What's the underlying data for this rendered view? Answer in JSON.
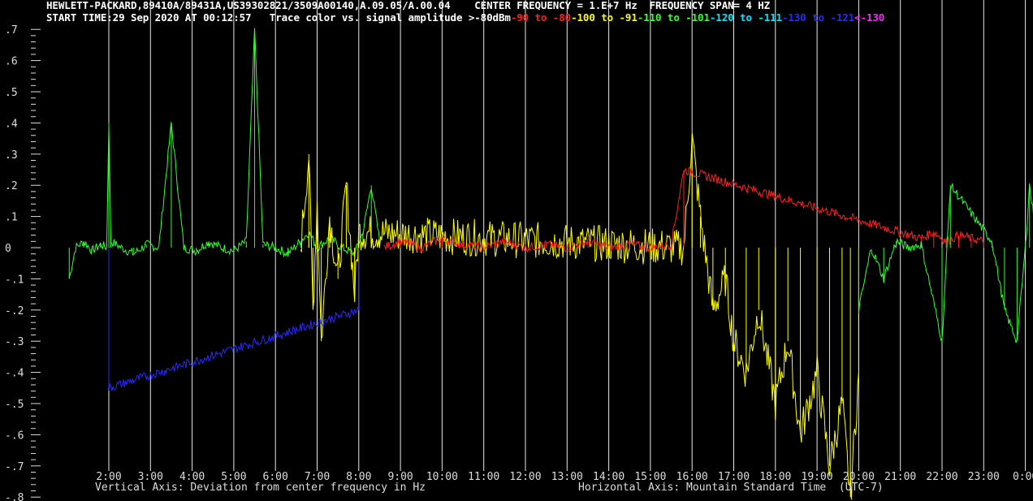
{
  "header": {
    "line1_instrument": "HEWLETT-PACKARD,89410A/89431A,US39302821/3509A00140,A.09.05/A.00.04",
    "line1_center": "CENTER FREQUENCY = 1.E+7 Hz",
    "line1_span": "FREQUENCY SPAN= 4 HZ",
    "line2_start": "START TIME:29 Sep 2020 AT 00:12:57",
    "line2_legend_title": "Trace color vs. signal amplitude",
    "legend": [
      {
        "label": ">-80dBm",
        "color": "#ffffff"
      },
      {
        "label": "-90 to -80",
        "color": "#ff2020"
      },
      {
        "label": "-100 to -91",
        "color": "#ffff00"
      },
      {
        "label": "-110 to -101",
        "color": "#33ff33"
      },
      {
        "label": "-120 to -111",
        "color": "#00e5ff"
      },
      {
        "label": "-130 to -121",
        "color": "#2a2aff"
      },
      {
        "label": "<-130",
        "color": "#ff22ff"
      }
    ]
  },
  "footer": {
    "vertical_axis": "Vertical Axis: Deviation from center frequency in Hz",
    "horizontal_axis": "Horizontal Axis: Mountain Standard Time  (UTC-7)"
  },
  "chart_data": {
    "type": "line",
    "xlabel": "Horizontal Axis: Mountain Standard Time  (UTC-7)",
    "ylabel": "Vertical Axis: Deviation from center frequency in Hz",
    "x_ticks": [
      "2:00",
      "3:00",
      "4:00",
      "5:00",
      "6:00",
      "7:00",
      "8:00",
      "9:00",
      "10:00",
      "11:00",
      "12:00",
      "13:00",
      "14:00",
      "15:00",
      "16:00",
      "17:00",
      "18:00",
      "19:00",
      "20:00",
      "21:00",
      "22:00",
      "23:00",
      "0:00"
    ],
    "y_ticks": [
      ".7",
      ".6",
      ".5",
      ".4",
      ".3",
      ".2",
      ".1",
      "0",
      "-.1",
      "-.2",
      "-.3",
      "-.4",
      "-.5",
      "-.6",
      "-.7",
      "-.8"
    ],
    "ylim": [
      -0.8,
      0.75
    ],
    "xlim_hours": [
      1.05,
      24.3
    ],
    "grid": "vertical lines at each hour",
    "series": [
      {
        "color": "#33ff33",
        "x": [
          1.05,
          1.2,
          1.4,
          1.6,
          1.8,
          1.95,
          2.0,
          2.05,
          2.3,
          2.6,
          2.9,
          3.2,
          3.5,
          3.8,
          4.1,
          4.4,
          4.7,
          5.0,
          5.3,
          5.5,
          5.7,
          6.0,
          6.3,
          6.6,
          6.8,
          7.0,
          7.3,
          7.6,
          7.9,
          8.1,
          8.3,
          8.5
        ],
        "y": [
          -0.1,
          0.0,
          0.02,
          -0.01,
          0.01,
          0.0,
          0.4,
          0.02,
          0.0,
          -0.02,
          0.01,
          0.0,
          0.4,
          0.0,
          -0.01,
          0.02,
          0.0,
          -0.01,
          0.02,
          0.7,
          0.01,
          0.0,
          -0.02,
          0.02,
          0.05,
          0.0,
          0.03,
          0.0,
          -0.02,
          0.05,
          0.2,
          0.02
        ]
      },
      {
        "color": "#ffff00",
        "x": [
          6.6,
          6.8,
          6.9,
          7.0,
          7.1,
          7.3,
          7.5,
          7.7,
          7.9,
          8.0,
          15.8,
          16.0,
          16.2,
          16.5,
          16.8,
          17.0,
          17.3,
          17.6,
          18.0,
          18.3,
          18.6,
          19.0,
          19.3,
          19.6,
          19.8,
          20.0
        ],
        "y": [
          0.0,
          0.3,
          -0.2,
          0.15,
          -0.3,
          0.1,
          -0.1,
          0.2,
          -0.15,
          0.05,
          0.0,
          0.35,
          0.1,
          -0.2,
          -0.1,
          -0.3,
          -0.4,
          -0.2,
          -0.5,
          -0.3,
          -0.6,
          -0.4,
          -0.7,
          -0.5,
          -0.8,
          -0.4
        ]
      },
      {
        "color": "#ff2020",
        "x": [
          8.6,
          9.0,
          9.5,
          10.0,
          10.5,
          11.0,
          11.5,
          12.0,
          12.5,
          13.0,
          13.5,
          14.0,
          14.5,
          15.0,
          15.5,
          15.8,
          21.5,
          21.8,
          22.1,
          22.4,
          22.7,
          23.0
        ],
        "y": [
          0.0,
          0.02,
          0.0,
          0.03,
          0.01,
          0.0,
          0.02,
          0.0,
          0.01,
          0.0,
          0.02,
          0.0,
          0.01,
          0.0,
          0.01,
          0.25,
          0.03,
          0.05,
          0.02,
          0.04,
          0.03,
          0.02
        ]
      },
      {
        "color": "#33ff33",
        "x": [
          20.0,
          20.3,
          20.6,
          20.9,
          21.2,
          21.5,
          22.0,
          22.2,
          23.2,
          23.5,
          23.8,
          24.0,
          24.1,
          24.3
        ],
        "y": [
          -0.2,
          0.0,
          -0.1,
          0.02,
          0.0,
          0.01,
          -0.3,
          0.2,
          0.02,
          -0.2,
          -0.3,
          0.0,
          0.2,
          0.0
        ]
      },
      {
        "color": "#2a2aff",
        "x": [
          2.0,
          8.0
        ],
        "y": [
          -0.45,
          -0.2
        ]
      }
    ]
  }
}
